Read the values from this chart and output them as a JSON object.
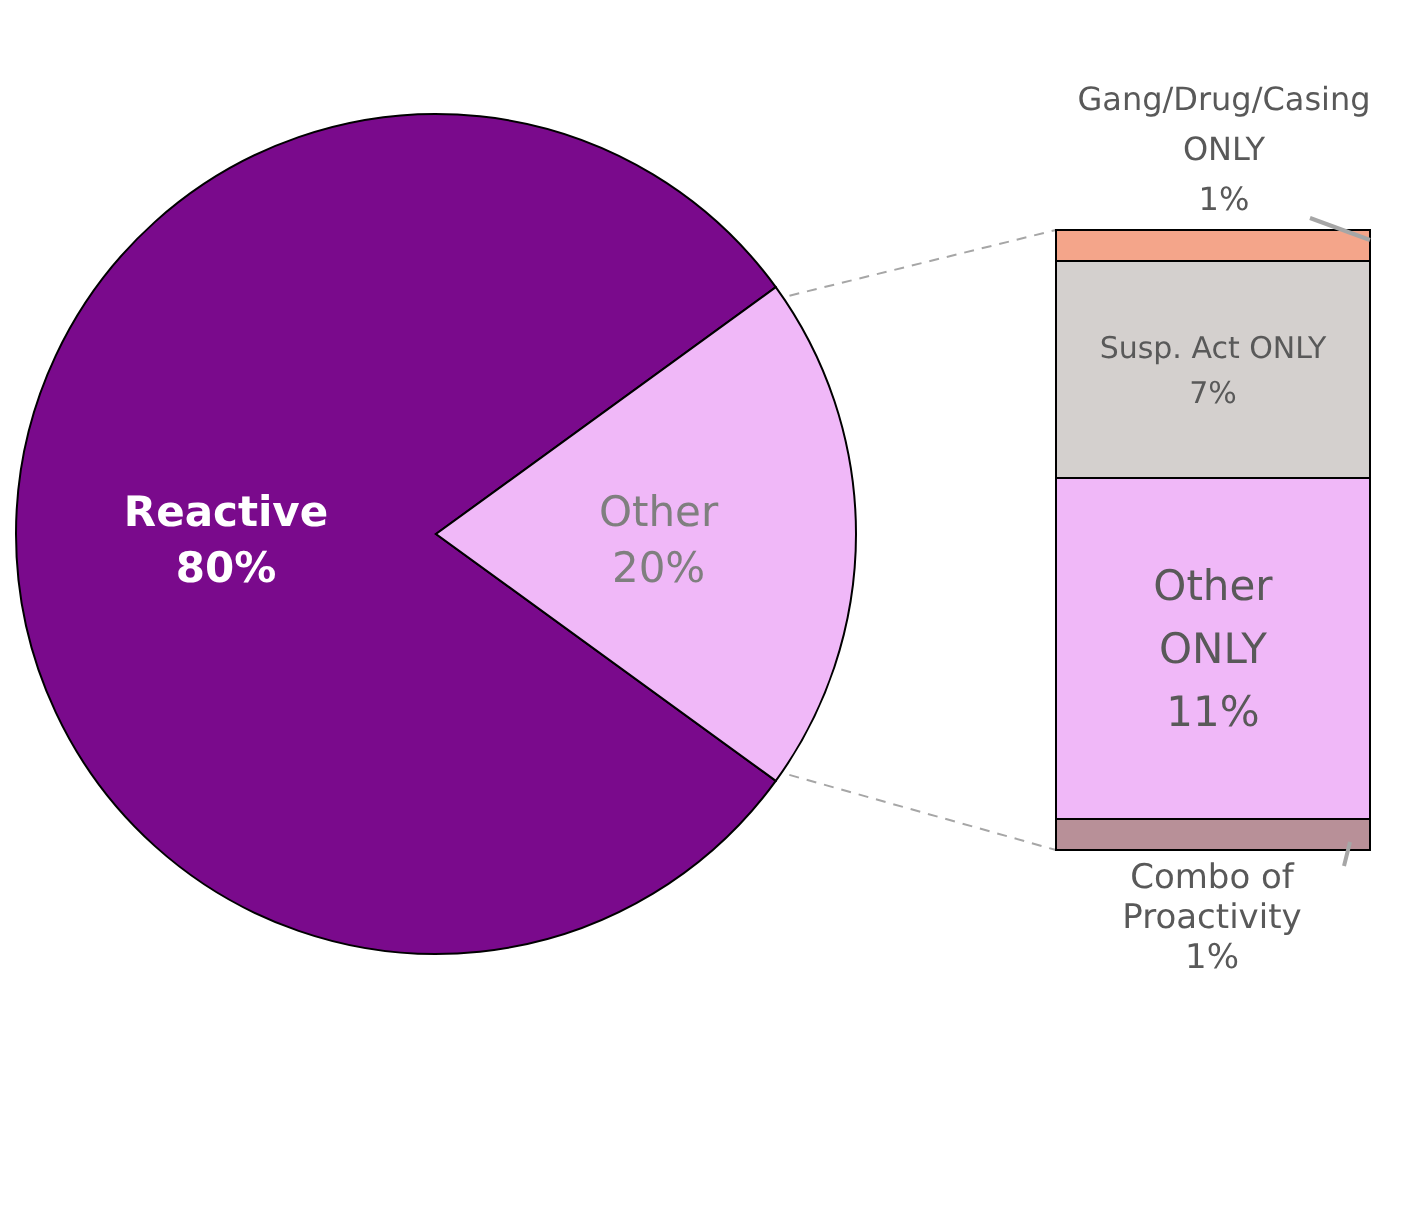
{
  "chart_data": [
    {
      "type": "pie",
      "categories": [
        "Reactive",
        "Other"
      ],
      "values": [
        80,
        20
      ],
      "colors": [
        "#7a0a8c",
        "#f0b8f8"
      ],
      "value_labels": [
        "80%",
        "20%"
      ]
    },
    {
      "type": "bar",
      "stacked": true,
      "categories": [
        null
      ],
      "series": [
        {
          "name": "Combo of Proactivity",
          "color": "#b89098",
          "values": [
            1
          ],
          "value_labels": [
            "1%"
          ]
        },
        {
          "name": "Other ONLY",
          "color": "#f0b8f8",
          "values": [
            11
          ],
          "value_labels": [
            "11%"
          ]
        },
        {
          "name": "Susp. Act ONLY",
          "color": "#d4d0ce",
          "values": [
            7
          ],
          "value_labels": [
            "7%"
          ]
        },
        {
          "name": "Gang/Drug/Casing ONLY",
          "color": "#f4a58a",
          "values": [
            1
          ],
          "value_labels": [
            "1%"
          ]
        }
      ]
    }
  ]
}
